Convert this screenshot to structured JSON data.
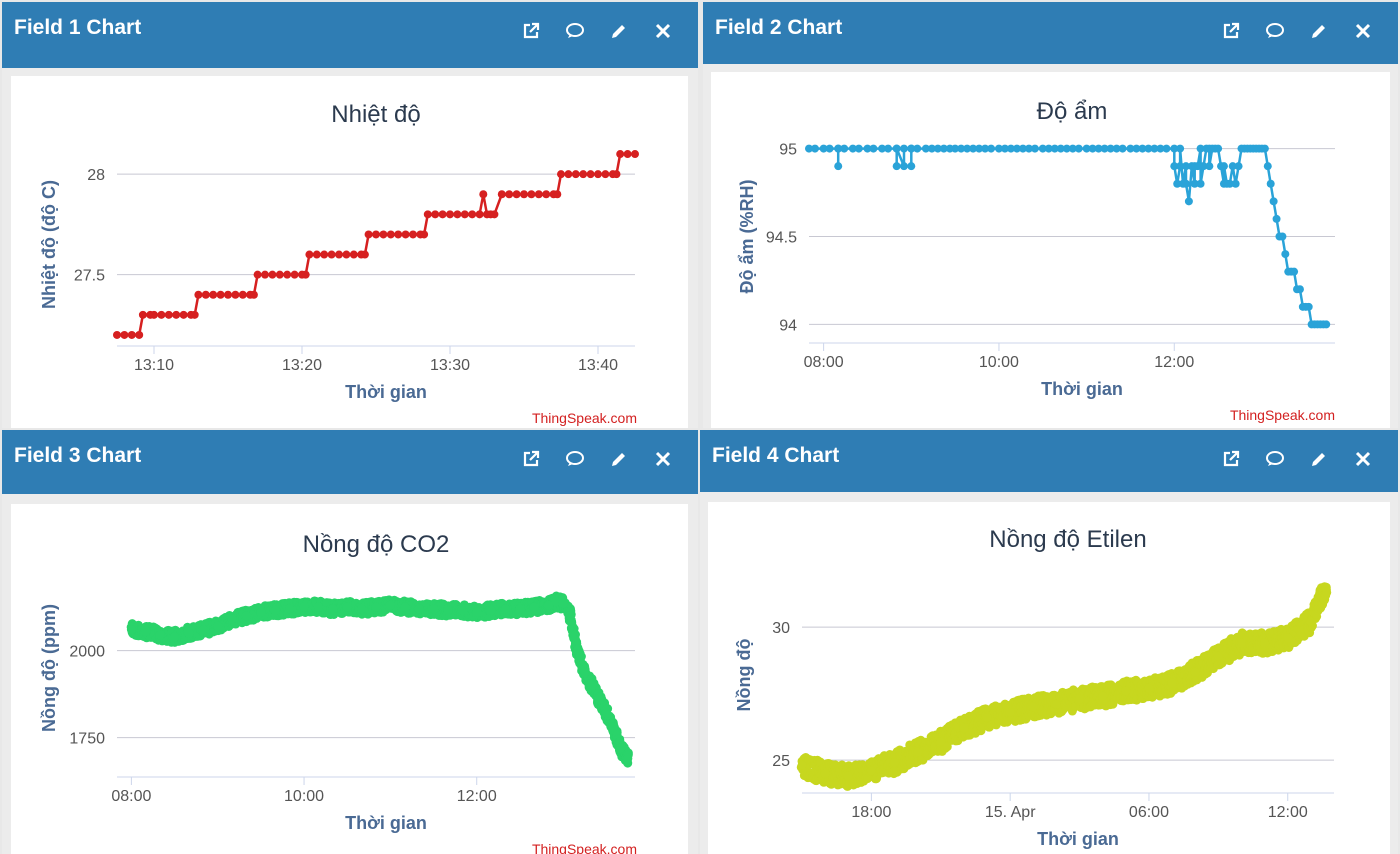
{
  "panels": [
    {
      "title": "Field 1 Chart",
      "chart_data": {
        "type": "line",
        "title": "Nhiệt độ",
        "xlabel": "Thời gian",
        "ylabel": "Nhiệt độ (độ C)",
        "x_unit": "minutes",
        "xlim": [
          "13:07:30",
          "13:42:30"
        ],
        "ylim": [
          27.15,
          28.15
        ],
        "yticks": [
          27.5,
          28
        ],
        "ytick_labels": [
          "27.5",
          "28"
        ],
        "xticks": [
          "13:10",
          "13:20",
          "13:30",
          "13:40"
        ],
        "color": "#d62020",
        "series": [
          {
            "x": [
              "13:07:30",
              "13:08",
              "13:08:30",
              "13:09",
              "13:09:15",
              "13:09:45",
              "13:10",
              "13:10:30",
              "13:11",
              "13:11:30",
              "13:12",
              "13:12:30",
              "13:12:45",
              "13:13",
              "13:13:30",
              "13:14",
              "13:14:30",
              "13:15",
              "13:15:30",
              "13:16",
              "13:16:30",
              "13:16:45",
              "13:17",
              "13:17:30",
              "13:18",
              "13:18:30",
              "13:19",
              "13:19:30",
              "13:20",
              "13:20:15",
              "13:20:30",
              "13:21",
              "13:21:30",
              "13:22",
              "13:22:30",
              "13:23",
              "13:23:30",
              "13:24",
              "13:24:15",
              "13:24:30",
              "13:25",
              "13:25:30",
              "13:26",
              "13:26:30",
              "13:27",
              "13:27:30",
              "13:28",
              "13:28:15",
              "13:28:30",
              "13:29",
              "13:29:30",
              "13:30",
              "13:30:30",
              "13:31",
              "13:31:30",
              "13:32",
              "13:32:15",
              "13:32:30",
              "13:32:45",
              "13:33",
              "13:33:30",
              "13:34",
              "13:34:30",
              "13:35",
              "13:35:30",
              "13:36",
              "13:36:30",
              "13:37",
              "13:37:15",
              "13:37:30",
              "13:38",
              "13:38:30",
              "13:39",
              "13:39:30",
              "13:40",
              "13:40:30",
              "13:41",
              "13:41:15",
              "13:41:30",
              "13:42",
              "13:42:30"
            ],
            "y": [
              27.2,
              27.2,
              27.2,
              27.2,
              27.3,
              27.3,
              27.3,
              27.3,
              27.3,
              27.3,
              27.3,
              27.3,
              27.3,
              27.4,
              27.4,
              27.4,
              27.4,
              27.4,
              27.4,
              27.4,
              27.4,
              27.4,
              27.5,
              27.5,
              27.5,
              27.5,
              27.5,
              27.5,
              27.5,
              27.5,
              27.6,
              27.6,
              27.6,
              27.6,
              27.6,
              27.6,
              27.6,
              27.6,
              27.6,
              27.7,
              27.7,
              27.7,
              27.7,
              27.7,
              27.7,
              27.7,
              27.7,
              27.7,
              27.8,
              27.8,
              27.8,
              27.8,
              27.8,
              27.8,
              27.8,
              27.8,
              27.9,
              27.8,
              27.8,
              27.8,
              27.9,
              27.9,
              27.9,
              27.9,
              27.9,
              27.9,
              27.9,
              27.9,
              27.9,
              28.0,
              28.0,
              28.0,
              28.0,
              28.0,
              28.0,
              28.0,
              28.0,
              28.0,
              28.1,
              28.1,
              28.1
            ]
          }
        ]
      }
    },
    {
      "title": "Field 2 Chart",
      "chart_data": {
        "type": "line",
        "title": "Độ ẩm",
        "xlabel": "Thời gian",
        "ylabel": "Độ ẩm (%RH)",
        "xlim": [
          "07:50",
          "13:50"
        ],
        "ylim": [
          93.9,
          95.1
        ],
        "yticks": [
          94,
          94.5,
          95
        ],
        "ytick_labels": [
          "94",
          "94.5",
          "95"
        ],
        "xticks": [
          "08:00",
          "10:00",
          "12:00"
        ],
        "color": "#2aa3d8",
        "series": [
          {
            "x": [
              "07:50",
              "08:00",
              "08:10",
              "08:10",
              "08:10",
              "08:20",
              "08:30",
              "08:40",
              "08:50",
              "08:50",
              "08:50",
              "08:55",
              "08:55",
              "09:00",
              "09:00",
              "09:00",
              "09:10",
              "09:30",
              "10:00",
              "10:30",
              "11:00",
              "11:30",
              "12:00",
              "12:00",
              "12:02",
              "12:04",
              "12:04",
              "12:06",
              "12:08",
              "12:08",
              "12:10",
              "12:12",
              "12:14",
              "12:14",
              "12:16",
              "12:18",
              "12:18",
              "12:20",
              "12:22",
              "12:24",
              "12:24",
              "12:26",
              "12:28",
              "12:30",
              "12:32",
              "12:34",
              "12:34",
              "12:36",
              "12:38",
              "12:40",
              "12:42",
              "12:44",
              "12:46",
              "12:48",
              "12:50",
              "12:52",
              "12:54",
              "12:56",
              "12:58",
              "13:00",
              "13:02",
              "13:04",
              "13:06",
              "13:08",
              "13:10",
              "13:12",
              "13:14",
              "13:16",
              "13:18",
              "13:20",
              "13:22",
              "13:24",
              "13:26",
              "13:28",
              "13:30",
              "13:32",
              "13:34",
              "13:36",
              "13:38",
              "13:40",
              "13:42",
              "13:44"
            ],
            "y": [
              95,
              95,
              95,
              94.9,
              95,
              95,
              95,
              95,
              95,
              94.9,
              95,
              94.9,
              95,
              95,
              94.9,
              95,
              95,
              95,
              95,
              95,
              95,
              95,
              95,
              94.9,
              94.8,
              94.9,
              95,
              94.8,
              94.9,
              94.8,
              94.7,
              94.9,
              94.8,
              94.9,
              94.9,
              95,
              94.8,
              94.9,
              95,
              95,
              94.9,
              95,
              95,
              95,
              94.9,
              94.8,
              94.9,
              94.8,
              94.8,
              94.9,
              94.8,
              94.9,
              95,
              95,
              95,
              95,
              95,
              95,
              95,
              95,
              95,
              94.9,
              94.8,
              94.7,
              94.6,
              94.5,
              94.5,
              94.4,
              94.3,
              94.3,
              94.3,
              94.2,
              94.2,
              94.1,
              94.1,
              94.1,
              94.0,
              94.0,
              94.0,
              94.0,
              94.0,
              94.0
            ]
          }
        ]
      }
    },
    {
      "title": "Field 3 Chart",
      "chart_data": {
        "type": "scatter",
        "title": "Nồng độ CO2",
        "xlabel": "Thời gian",
        "ylabel": "Nồng độ (ppm)",
        "xlim": [
          "07:50",
          "13:50"
        ],
        "ylim": [
          1640,
          2260
        ],
        "yticks": [
          1750,
          2000
        ],
        "ytick_labels": [
          "1750",
          "2000"
        ],
        "xticks": [
          "08:00",
          "10:00",
          "12:00"
        ],
        "color": "#2ad36a",
        "series": [
          {
            "x": [
              "08:00",
              "08:10",
              "08:20",
              "08:30",
              "08:40",
              "08:50",
              "09:00",
              "09:10",
              "09:20",
              "09:30",
              "09:40",
              "09:50",
              "10:00",
              "10:10",
              "10:20",
              "10:30",
              "10:40",
              "10:50",
              "11:00",
              "11:10",
              "11:20",
              "11:30",
              "11:40",
              "11:50",
              "12:00",
              "12:10",
              "12:20",
              "12:30",
              "12:40",
              "12:50",
              "12:55",
              "13:00",
              "13:05",
              "13:10",
              "13:15",
              "13:20",
              "13:25",
              "13:30",
              "13:35",
              "13:40",
              "13:45"
            ],
            "y": [
              2060,
              2055,
              2045,
              2040,
              2050,
              2060,
              2070,
              2090,
              2100,
              2110,
              2115,
              2120,
              2125,
              2125,
              2120,
              2125,
              2120,
              2125,
              2130,
              2125,
              2120,
              2120,
              2115,
              2115,
              2110,
              2115,
              2120,
              2120,
              2125,
              2130,
              2140,
              2135,
              2100,
              2000,
              1940,
              1900,
              1860,
              1820,
              1780,
              1720,
              1690
            ]
          }
        ]
      }
    },
    {
      "title": "Field 4 Chart",
      "chart_data": {
        "type": "scatter",
        "title": "Nồng độ Etilen",
        "xlabel": "Thời gian",
        "ylabel": "Nồng độ",
        "xlim": [
          "14 Apr 15:00",
          "15 Apr 14:00"
        ],
        "ylim": [
          23.8,
          32.6
        ],
        "yticks": [
          25,
          30
        ],
        "ytick_labels": [
          "25",
          "30"
        ],
        "xticks": [
          "18:00",
          "15. Apr",
          "06:00",
          "12:00"
        ],
        "color": "#c7d71f",
        "series": [
          {
            "x": [
              "14 Apr 15:00",
              "14 Apr 16:00",
              "14 Apr 17:00",
              "14 Apr 18:00",
              "14 Apr 19:00",
              "14 Apr 20:00",
              "14 Apr 21:00",
              "14 Apr 22:00",
              "14 Apr 23:00",
              "15 Apr 00:00",
              "15 Apr 01:00",
              "15 Apr 02:00",
              "15 Apr 03:00",
              "15 Apr 04:00",
              "15 Apr 05:00",
              "15 Apr 06:00",
              "15 Apr 07:00",
              "15 Apr 08:00",
              "15 Apr 09:00",
              "15 Apr 10:00",
              "15 Apr 11:00",
              "15 Apr 12:00",
              "15 Apr 13:00",
              "15 Apr 13:40"
            ],
            "y": [
              24.8,
              24.5,
              24.4,
              24.6,
              24.9,
              25.3,
              25.7,
              26.2,
              26.6,
              26.8,
              27.0,
              27.1,
              27.3,
              27.4,
              27.6,
              27.7,
              27.9,
              28.3,
              28.9,
              29.4,
              29.4,
              29.6,
              30.2,
              31.5
            ]
          }
        ]
      }
    }
  ],
  "credit": "ThingSpeak.com"
}
